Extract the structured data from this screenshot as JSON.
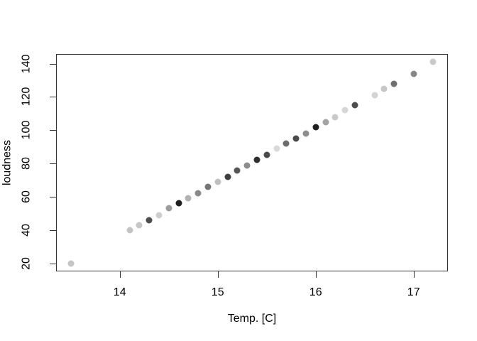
{
  "figure": {
    "background": "#ffffff",
    "axis_line_color": "#333333",
    "text_color": "#000000"
  },
  "chart_data": {
    "type": "scatter",
    "title": "",
    "xlabel": "Temp. [C]",
    "ylabel": "loudness",
    "xlim": [
      13.35,
      17.35
    ],
    "ylim": [
      15.2,
      145.8
    ],
    "x_ticks": [
      14,
      15,
      16,
      17
    ],
    "y_ticks": [
      20,
      40,
      60,
      80,
      100,
      120,
      140
    ],
    "grid": false,
    "legend": false,
    "marker": "filled-circle",
    "points": [
      {
        "x": 13.5,
        "y": 20,
        "color": "#c5c5c5"
      },
      {
        "x": 14.1,
        "y": 40,
        "color": "#c3c3c3"
      },
      {
        "x": 14.2,
        "y": 43,
        "color": "#c7c7c7"
      },
      {
        "x": 14.3,
        "y": 46,
        "color": "#4d4d4d"
      },
      {
        "x": 14.4,
        "y": 49,
        "color": "#cecece"
      },
      {
        "x": 14.5,
        "y": 53,
        "color": "#9c9c9c"
      },
      {
        "x": 14.6,
        "y": 56,
        "color": "#1f1f1f"
      },
      {
        "x": 14.7,
        "y": 59,
        "color": "#b2b2b2"
      },
      {
        "x": 14.8,
        "y": 62,
        "color": "#8a8a8a"
      },
      {
        "x": 14.9,
        "y": 66,
        "color": "#757575"
      },
      {
        "x": 15.0,
        "y": 69,
        "color": "#c0c0c0"
      },
      {
        "x": 15.1,
        "y": 72,
        "color": "#3f3f3f"
      },
      {
        "x": 15.2,
        "y": 76,
        "color": "#565656"
      },
      {
        "x": 15.3,
        "y": 79,
        "color": "#8c8c8c"
      },
      {
        "x": 15.4,
        "y": 82,
        "color": "#2e2e2e"
      },
      {
        "x": 15.5,
        "y": 85,
        "color": "#4a4a4a"
      },
      {
        "x": 15.6,
        "y": 89,
        "color": "#d9d9d9"
      },
      {
        "x": 15.7,
        "y": 92,
        "color": "#6c6c6c"
      },
      {
        "x": 15.8,
        "y": 95,
        "color": "#4b4b4b"
      },
      {
        "x": 15.9,
        "y": 98,
        "color": "#8e8e8e"
      },
      {
        "x": 16.0,
        "y": 102,
        "color": "#1f1f1f"
      },
      {
        "x": 16.1,
        "y": 105,
        "color": "#a3a3a3"
      },
      {
        "x": 16.2,
        "y": 108,
        "color": "#cacaca"
      },
      {
        "x": 16.3,
        "y": 112,
        "color": "#d6d6d6"
      },
      {
        "x": 16.4,
        "y": 115,
        "color": "#4e4e4e"
      },
      {
        "x": 16.6,
        "y": 121,
        "color": "#d4d4d4"
      },
      {
        "x": 16.7,
        "y": 125,
        "color": "#c7c7c7"
      },
      {
        "x": 16.8,
        "y": 128,
        "color": "#707070"
      },
      {
        "x": 17.0,
        "y": 134,
        "color": "#868686"
      },
      {
        "x": 17.2,
        "y": 141,
        "color": "#c9c9c9"
      }
    ]
  }
}
